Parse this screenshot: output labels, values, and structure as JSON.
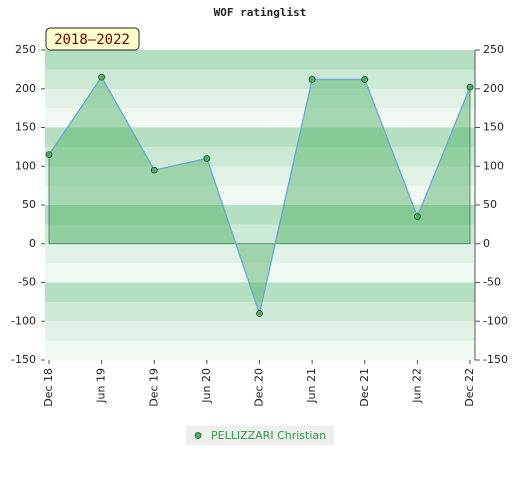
{
  "chart_data": {
    "type": "area",
    "title": "WOF ratinglist",
    "annotation": "2018–2022",
    "categories": [
      "Dec 18",
      "Jun 19",
      "Dec 19",
      "Jun 20",
      "Dec 20",
      "Jun 21",
      "Dec 21",
      "Jun 22",
      "Dec 22"
    ],
    "series": [
      {
        "name": "PELLIZZARI Christian",
        "color": "#4caf63",
        "line_color": "#6aa8dc",
        "values": [
          115,
          215,
          95,
          110,
          -90,
          212,
          212,
          35,
          202
        ]
      }
    ],
    "ylim": [
      -150,
      250
    ],
    "yticks": [
      -150,
      -100,
      -50,
      0,
      50,
      100,
      150,
      200,
      250
    ],
    "y2lim": [
      -150,
      250
    ],
    "y2ticks": [
      -150,
      -100,
      -50,
      0,
      50,
      100,
      150,
      200,
      250
    ],
    "band_colors": [
      "#b4dfc1",
      "#cbe9d4",
      "#e0f2e6",
      "#f0f8f2"
    ]
  }
}
